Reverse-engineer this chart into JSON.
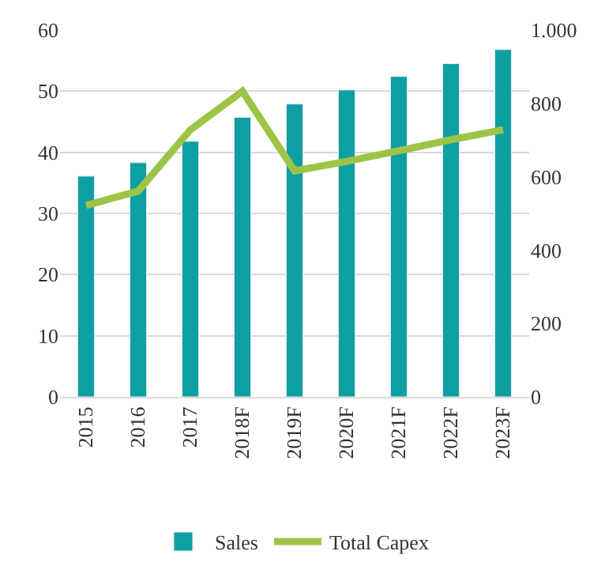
{
  "chart_data": {
    "type": "bar",
    "categories": [
      "2015",
      "2016",
      "2017",
      "2018F",
      "2019F",
      "2020F",
      "2021F",
      "2022F",
      "2023F"
    ],
    "series": [
      {
        "name": "Sales",
        "color": "#0e9fa3",
        "values": [
          36.1,
          38.3,
          41.8,
          45.7,
          47.9,
          50.2,
          52.4,
          54.5,
          56.8
        ]
      },
      {
        "name": "Total Capex",
        "type": "line",
        "axis": "y2",
        "color": "#9dc447",
        "values": [
          522,
          561,
          728,
          833,
          616,
          642,
          671,
          701,
          728
        ]
      }
    ],
    "ylim": [
      0,
      60
    ],
    "yticks": [
      0,
      10,
      20,
      30,
      40,
      50,
      60
    ],
    "y2lim": [
      0,
      1000
    ],
    "y2ticks": [
      0,
      200,
      400,
      600,
      800,
      {
        "value": 1000,
        "label": "1.000"
      }
    ],
    "grid": "y",
    "legend": "bottom",
    "marker": "none",
    "line_style": "solid"
  }
}
